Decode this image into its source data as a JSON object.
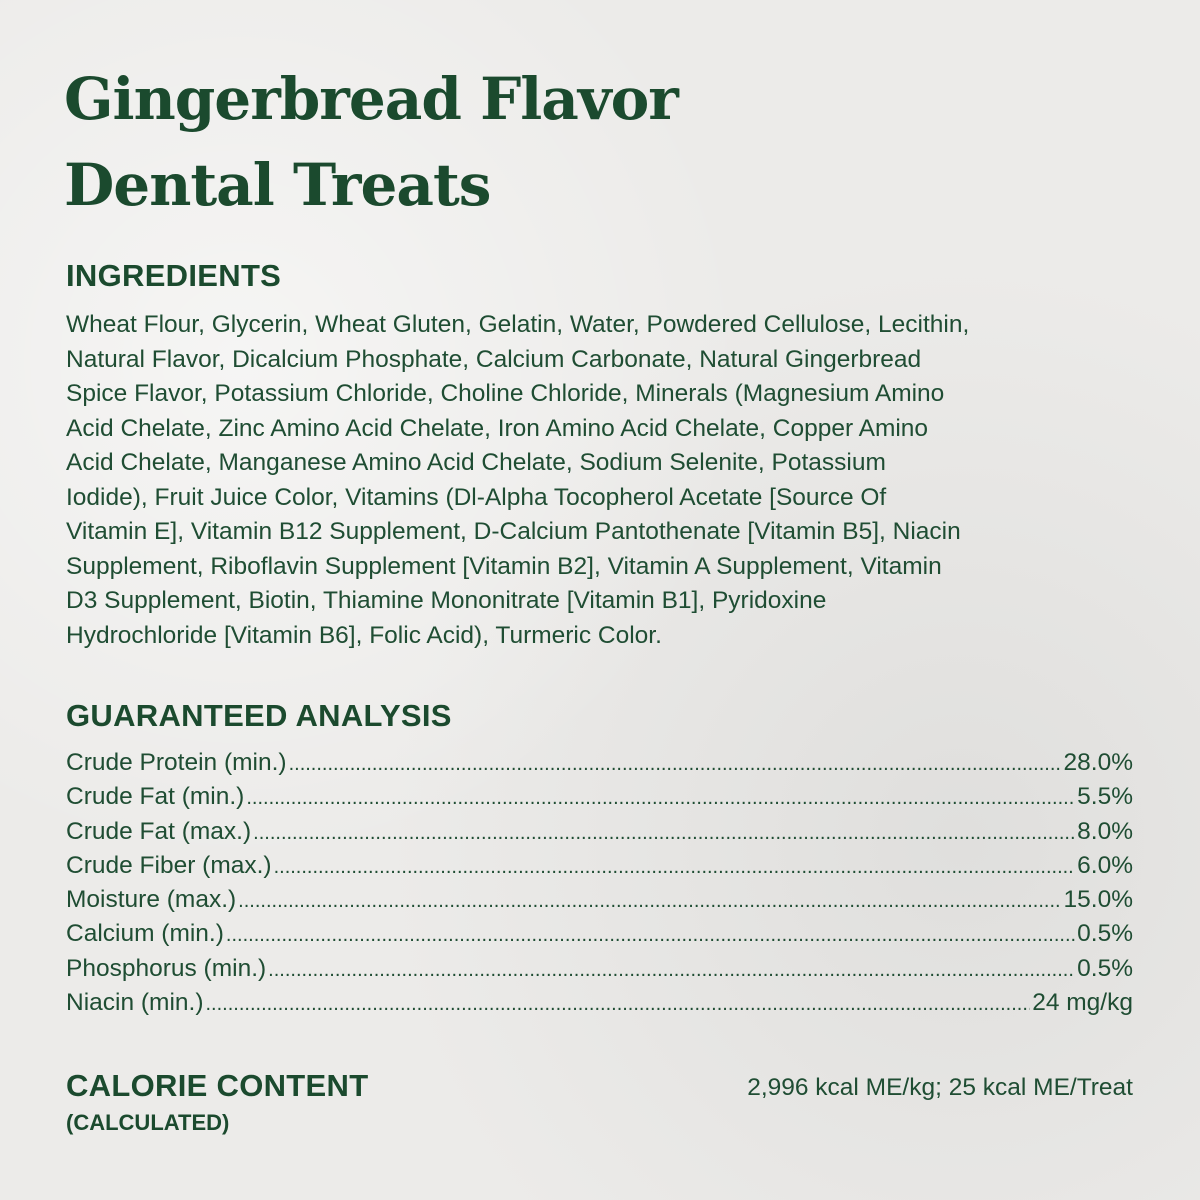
{
  "title_lines": [
    "Gingerbread Flavor",
    "Dental Treats"
  ],
  "ingredients": {
    "heading": "INGREDIENTS",
    "lines": [
      "Wheat Flour, Glycerin, Wheat Gluten, Gelatin, Water, Powdered Cellulose, Lecithin,",
      "Natural Flavor, Dicalcium Phosphate, Calcium Carbonate, Natural Gingerbread",
      "Spice Flavor, Potassium Chloride, Choline Chloride, Minerals (Magnesium Amino",
      "Acid Chelate, Zinc Amino Acid Chelate, Iron Amino Acid Chelate, Copper Amino",
      "Acid Chelate, Manganese Amino Acid Chelate, Sodium Selenite, Potassium",
      "Iodide), Fruit Juice Color, Vitamins (Dl-Alpha Tocopherol Acetate [Source Of",
      "Vitamin E], Vitamin B12 Supplement, D-Calcium Pantothenate [Vitamin B5], Niacin",
      "Supplement, Riboflavin Supplement [Vitamin B2], Vitamin A Supplement, Vitamin",
      "D3 Supplement, Biotin, Thiamine Mononitrate [Vitamin B1], Pyridoxine",
      "Hydrochloride [Vitamin B6], Folic Acid), Turmeric Color."
    ]
  },
  "analysis": {
    "heading": "GUARANTEED ANALYSIS",
    "rows": [
      {
        "label": "Crude Protein (min.)",
        "value": "28.0%"
      },
      {
        "label": "Crude Fat (min.)",
        "value": "5.5%"
      },
      {
        "label": "Crude Fat (max.)",
        "value": "8.0%"
      },
      {
        "label": "Crude Fiber (max.)",
        "value": "6.0%"
      },
      {
        "label": "Moisture (max.)",
        "value": "15.0%"
      },
      {
        "label": "Calcium (min.)",
        "value": "0.5%"
      },
      {
        "label": "Phosphorus (min.)",
        "value": "0.5%"
      },
      {
        "label": "Niacin (min.)",
        "value": "24 mg/kg"
      }
    ]
  },
  "calorie": {
    "heading": "CALORIE CONTENT",
    "subheading": "(CALCULATED)",
    "value": "2,996 kcal ME/kg; 25 kcal ME/Treat"
  },
  "colors": {
    "text": "#1f4d33",
    "heading": "#1b4a2e",
    "background": "#ecebe9"
  }
}
